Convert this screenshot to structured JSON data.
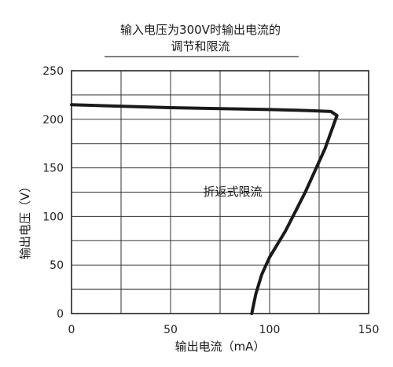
{
  "chart_data": {
    "type": "line",
    "title_line1": "输入电压为300V时输出电流的",
    "title_line2": "调节和限流",
    "xlabel": "输出电流（mA）",
    "ylabel": "输出电压（V）",
    "xlim": [
      0,
      150
    ],
    "ylim": [
      0,
      250
    ],
    "x_ticks": [
      0,
      50,
      100,
      150
    ],
    "y_ticks": [
      0,
      50,
      100,
      150,
      200,
      250
    ],
    "grid": true,
    "annotation": "折返式限流",
    "series": [
      {
        "points": [
          [
            0,
            215
          ],
          [
            50,
            212
          ],
          [
            100,
            210
          ],
          [
            120,
            209
          ],
          [
            131,
            208
          ],
          [
            134,
            204
          ],
          [
            128,
            170
          ],
          [
            118,
            125
          ],
          [
            108,
            85
          ],
          [
            100,
            58
          ],
          [
            96,
            40
          ],
          [
            93,
            20
          ],
          [
            91,
            0
          ]
        ]
      }
    ]
  }
}
